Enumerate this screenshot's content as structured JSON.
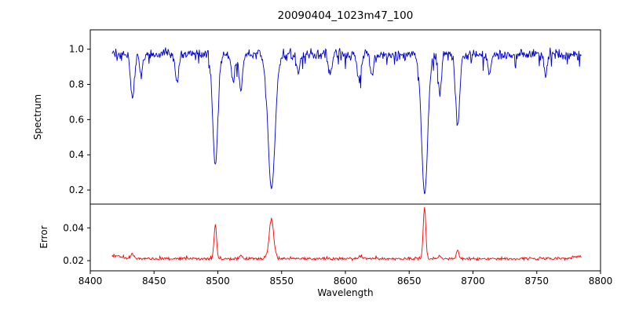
{
  "figure_title": "20090404_1023m47_100",
  "chart_data": {
    "type": "line",
    "title": "20090404_1023m47_100",
    "xlabel": "Wavelength",
    "x_range": [
      8400,
      8800
    ],
    "x_ticks": [
      8400,
      8450,
      8500,
      8550,
      8600,
      8650,
      8700,
      8750,
      8800
    ],
    "x_data_range": [
      8417,
      8785
    ],
    "grid": false,
    "legend": "none",
    "panels": [
      {
        "name": "spectrum",
        "ylabel": "Spectrum",
        "ylim": [
          0.12,
          1.11
        ],
        "y_ticks": [
          0.2,
          0.4,
          0.6,
          0.8,
          1.0
        ],
        "color": "#0000cc",
        "continuum": 0.97,
        "noise_amplitude": 0.045,
        "absorption_lines": [
          {
            "center": 8433,
            "depth": 0.25,
            "sigma": 1.5
          },
          {
            "center": 8440,
            "depth": 0.12,
            "sigma": 1.2
          },
          {
            "center": 8468,
            "depth": 0.16,
            "sigma": 1.3
          },
          {
            "center": 8498.0,
            "depth": 0.63,
            "sigma": 2.0
          },
          {
            "center": 8512,
            "depth": 0.16,
            "sigma": 1.4
          },
          {
            "center": 8518,
            "depth": 0.2,
            "sigma": 1.4
          },
          {
            "center": 8542.1,
            "depth": 0.76,
            "sigma": 2.8
          },
          {
            "center": 8563,
            "depth": 0.1,
            "sigma": 1.2
          },
          {
            "center": 8588,
            "depth": 0.12,
            "sigma": 1.3
          },
          {
            "center": 8611,
            "depth": 0.15,
            "sigma": 1.5
          },
          {
            "center": 8621,
            "depth": 0.12,
            "sigma": 1.2
          },
          {
            "center": 8662.1,
            "depth": 0.79,
            "sigma": 2.4
          },
          {
            "center": 8674,
            "depth": 0.22,
            "sigma": 1.3
          },
          {
            "center": 8688,
            "depth": 0.4,
            "sigma": 1.6
          },
          {
            "center": 8713,
            "depth": 0.12,
            "sigma": 1.2
          },
          {
            "center": 8757,
            "depth": 0.12,
            "sigma": 1.2
          }
        ]
      },
      {
        "name": "error",
        "ylabel": "Error",
        "ylim": [
          0.0138,
          0.0545
        ],
        "y_ticks": [
          0.02,
          0.04
        ],
        "color": "#ff0000",
        "baseline": 0.0212,
        "noise_amplitude": 0.0012,
        "peaks": [
          {
            "center": 8420,
            "height": 0.002,
            "sigma": 4.0
          },
          {
            "center": 8433,
            "height": 0.003,
            "sigma": 1.2
          },
          {
            "center": 8498,
            "height": 0.0205,
            "sigma": 1.0
          },
          {
            "center": 8518,
            "height": 0.002,
            "sigma": 1.0
          },
          {
            "center": 8542,
            "height": 0.024,
            "sigma": 1.8
          },
          {
            "center": 8611,
            "height": 0.0015,
            "sigma": 1.2
          },
          {
            "center": 8662,
            "height": 0.0315,
            "sigma": 1.0
          },
          {
            "center": 8674,
            "height": 0.002,
            "sigma": 0.8
          },
          {
            "center": 8688,
            "height": 0.0055,
            "sigma": 0.9
          },
          {
            "center": 8783,
            "height": 0.0015,
            "sigma": 4.0
          }
        ]
      }
    ]
  }
}
